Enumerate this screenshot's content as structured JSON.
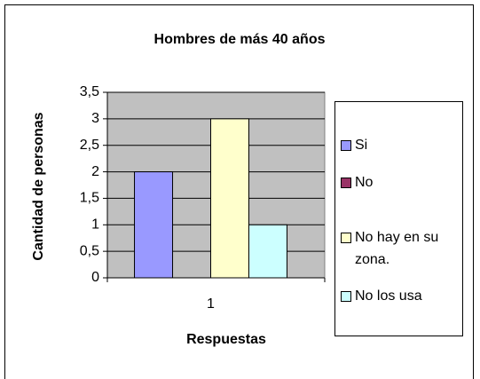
{
  "chart_data": {
    "type": "bar",
    "title": "Hombres de más 40 años",
    "x_label": "Respuestas",
    "y_label": "Cantidad de personas",
    "categories": [
      "1"
    ],
    "series": [
      {
        "name": "Si",
        "color": "#9999ff",
        "values": [
          2
        ]
      },
      {
        "name": "No",
        "color": "#993366",
        "values": [
          0
        ]
      },
      {
        "name": "No hay en su zona.",
        "color": "#ffffcc",
        "values": [
          3
        ]
      },
      {
        "name": "No los usa",
        "color": "#ccffff",
        "values": [
          1
        ]
      }
    ],
    "ylim": [
      0,
      3.5
    ],
    "yticks": [
      0,
      {
        "value": 0.5,
        "label": "0,5"
      },
      1,
      {
        "value": 1.5,
        "label": "1,5"
      },
      2,
      {
        "value": 2.5,
        "label": "2,5"
      },
      3,
      {
        "value": 3.5,
        "label": "3,5"
      }
    ],
    "grid": true,
    "plot_background": "#c0c0c0",
    "legend": "right"
  }
}
